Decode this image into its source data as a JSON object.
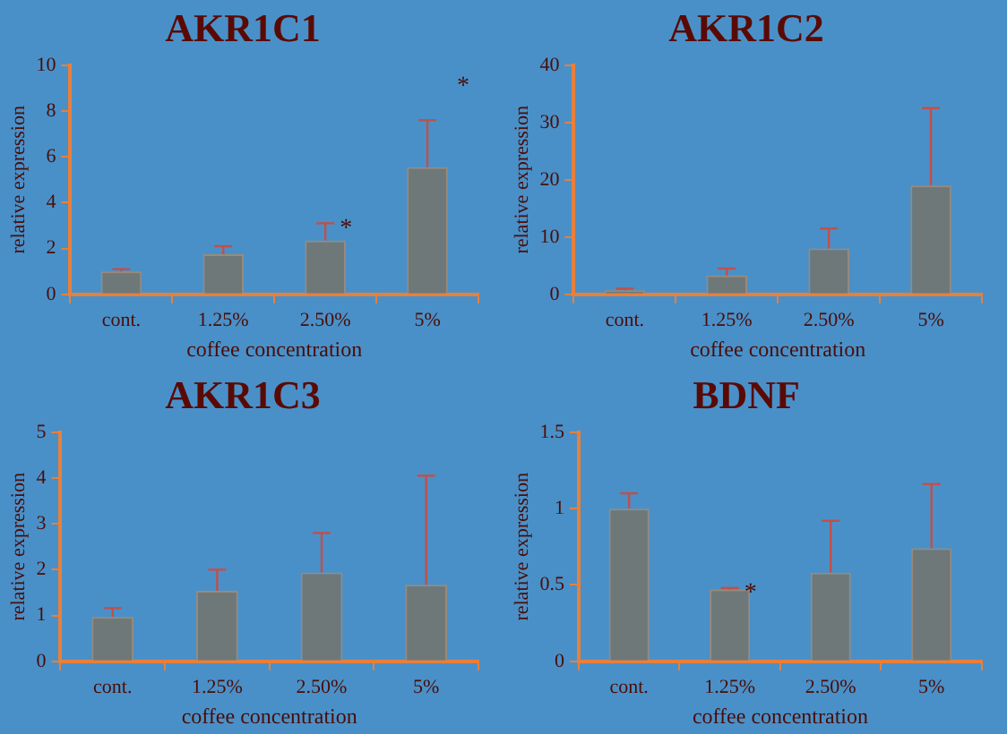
{
  "chart_data": [
    {
      "type": "bar",
      "title": "AKR1C1",
      "xlabel": "coffee concentration",
      "ylabel": "relative expression",
      "categories": [
        "cont.",
        "1.25%",
        "2.50%",
        "5%"
      ],
      "values": [
        1.0,
        1.75,
        2.35,
        5.55
      ],
      "errors": [
        [
          1.0,
          1.1
        ],
        [
          1.75,
          2.1
        ],
        [
          2.35,
          3.1
        ],
        [
          5.55,
          7.6
        ]
      ],
      "color": "#6e7878",
      "ylim": [
        0,
        10
      ],
      "yticks": [
        0,
        2,
        4,
        6,
        8,
        10
      ],
      "grid": false,
      "legend": false,
      "annotations": [
        {
          "text": "*",
          "x": "2.50%",
          "y": 3.1
        },
        "*"
      ]
    },
    {
      "type": "bar",
      "title": "AKR1C2",
      "xlabel": "coffee concentration",
      "ylabel": "relative expression",
      "categories": [
        "cont.",
        "1.25%",
        "2.50%",
        "5%"
      ],
      "values": [
        0.7,
        3.3,
        8,
        19
      ],
      "errors": [
        [
          0.7,
          1.0
        ],
        [
          3.3,
          4.5
        ],
        [
          8,
          11.5
        ],
        [
          19,
          32.5
        ]
      ],
      "color": "#6e7878",
      "ylim": [
        0,
        40
      ],
      "yticks": [
        0,
        10,
        20,
        30,
        40
      ],
      "grid": false,
      "legend": false
    },
    {
      "type": "bar",
      "title": "AKR1C3",
      "xlabel": "coffee concentration",
      "ylabel": "relative expression",
      "categories": [
        "cont.",
        "1.25%",
        "2.50%",
        "5%"
      ],
      "values": [
        0.97,
        1.54,
        1.94,
        1.67
      ],
      "errors": [
        [
          0.97,
          1.16
        ],
        [
          1.54,
          2.0
        ],
        [
          1.94,
          2.8
        ],
        [
          1.67,
          4.05
        ]
      ],
      "color": "#6e7878",
      "ylim": [
        0,
        5
      ],
      "yticks": [
        0,
        1,
        2,
        3,
        4,
        5
      ],
      "grid": false,
      "legend": false
    },
    {
      "type": "bar",
      "title": "BDNF",
      "xlabel": "coffee concentration",
      "ylabel": "relative expression",
      "categories": [
        "cont.",
        "1.25%",
        "2.50%",
        "5%"
      ],
      "values": [
        1.0,
        0.47,
        0.58,
        0.74
      ],
      "errors": [
        [
          1.0,
          1.1
        ],
        [
          0.47,
          0.48
        ],
        [
          0.58,
          0.92
        ],
        [
          0.74,
          1.16
        ]
      ],
      "color": "#6e7878",
      "ylim": [
        0,
        1.5
      ],
      "yticks": [
        0,
        0.5,
        1,
        1.5
      ],
      "grid": false,
      "legend": false,
      "annotations": [
        {
          "text": "*",
          "x": "1.25%",
          "y": 0.48
        }
      ]
    }
  ]
}
